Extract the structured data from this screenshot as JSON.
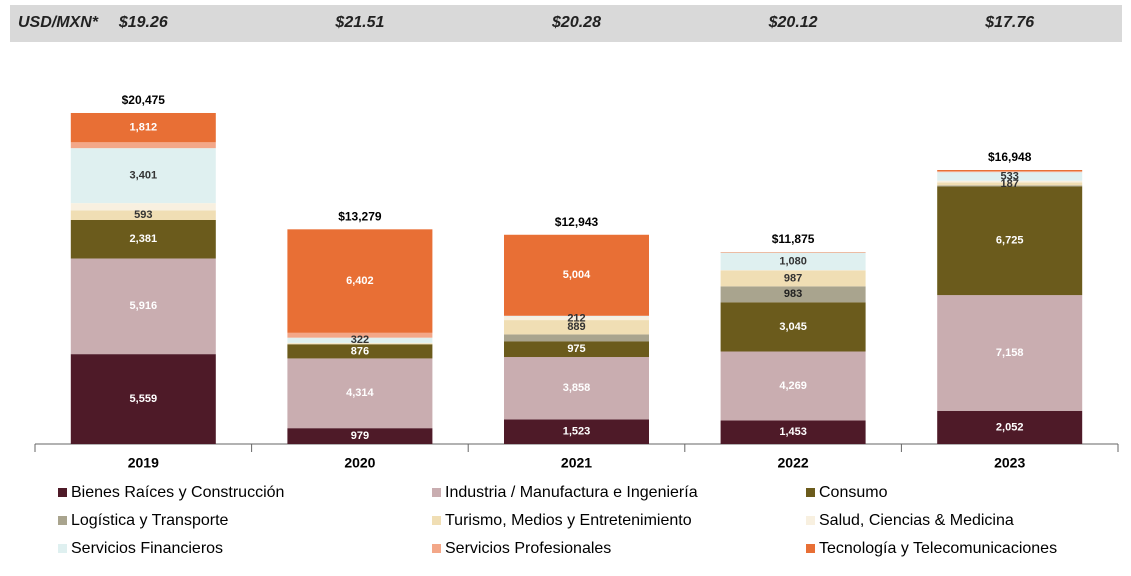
{
  "header": {
    "label": "USD/MXN*",
    "rates": [
      "$19.26",
      "$21.51",
      "$20.28",
      "$20.12",
      "$17.76"
    ]
  },
  "chart_data": {
    "type": "stacked_bar",
    "categories": [
      "2019",
      "2020",
      "2021",
      "2022",
      "2023"
    ],
    "total_labels": [
      "$20,475",
      "$13,279",
      "$12,943",
      "$11,875",
      "$16,948"
    ],
    "ylim": [
      0,
      21000
    ],
    "series": [
      {
        "name": "Bienes Raíces y Construcción",
        "color": "#4e1a28",
        "label_color": "#ffffff",
        "values": [
          5559,
          979,
          1523,
          1453,
          2052
        ],
        "value_labels": [
          "5,559",
          "979",
          "1,523",
          "1,453",
          "2,052"
        ]
      },
      {
        "name": "Industria / Manufactura e Ingeniería",
        "color": "#c9adb0",
        "label_color": "#ffffff",
        "values": [
          5916,
          4314,
          3858,
          4269,
          7158
        ],
        "value_labels": [
          "5,916",
          "4,314",
          "3,858",
          "4,269",
          "7,158"
        ]
      },
      {
        "name": "Consumo",
        "color": "#6b5b1c",
        "label_color": "#ffffff",
        "values": [
          2381,
          876,
          975,
          3045,
          6725
        ],
        "value_labels": [
          "2,381",
          "876",
          "975",
          "3,045",
          "6,725"
        ]
      },
      {
        "name": "Logística y Transporte",
        "color": "#a9a48e",
        "label_color": "#222222",
        "values": [
          0,
          0,
          420,
          983,
          60
        ],
        "value_labels": [
          null,
          null,
          null,
          "983",
          null
        ]
      },
      {
        "name": "Turismo, Medios y Entretenimiento",
        "color": "#f0deb4",
        "label_color": "#333333",
        "values": [
          593,
          50,
          889,
          987,
          187
        ],
        "value_labels": [
          "593",
          null,
          "889",
          "987",
          "187"
        ]
      },
      {
        "name": "Salud, Ciencias & Medicina",
        "color": "#f8f0e0",
        "label_color": "#333333",
        "values": [
          450,
          36,
          212,
          20,
          100
        ],
        "value_labels": [
          null,
          null,
          "212",
          null,
          null
        ]
      },
      {
        "name": "Servicios Financieros",
        "color": "#dff0f0",
        "label_color": "#333333",
        "values": [
          3401,
          322,
          40,
          1080,
          533
        ],
        "value_labels": [
          "3,401",
          "322",
          null,
          "1,080",
          "533"
        ]
      },
      {
        "name": "Servicios Profesionales",
        "color": "#f3a788",
        "label_color": "#333333",
        "values": [
          363,
          300,
          22,
          18,
          70
        ],
        "value_labels": [
          null,
          null,
          null,
          null,
          null
        ]
      },
      {
        "name": "Tecnología y Telecomunicaciones",
        "color": "#e86f35",
        "label_color": "#ffffff",
        "values": [
          1812,
          6402,
          5004,
          20,
          63
        ],
        "value_labels": [
          "1,812",
          "6,402",
          "5,004",
          null,
          null
        ]
      }
    ]
  }
}
